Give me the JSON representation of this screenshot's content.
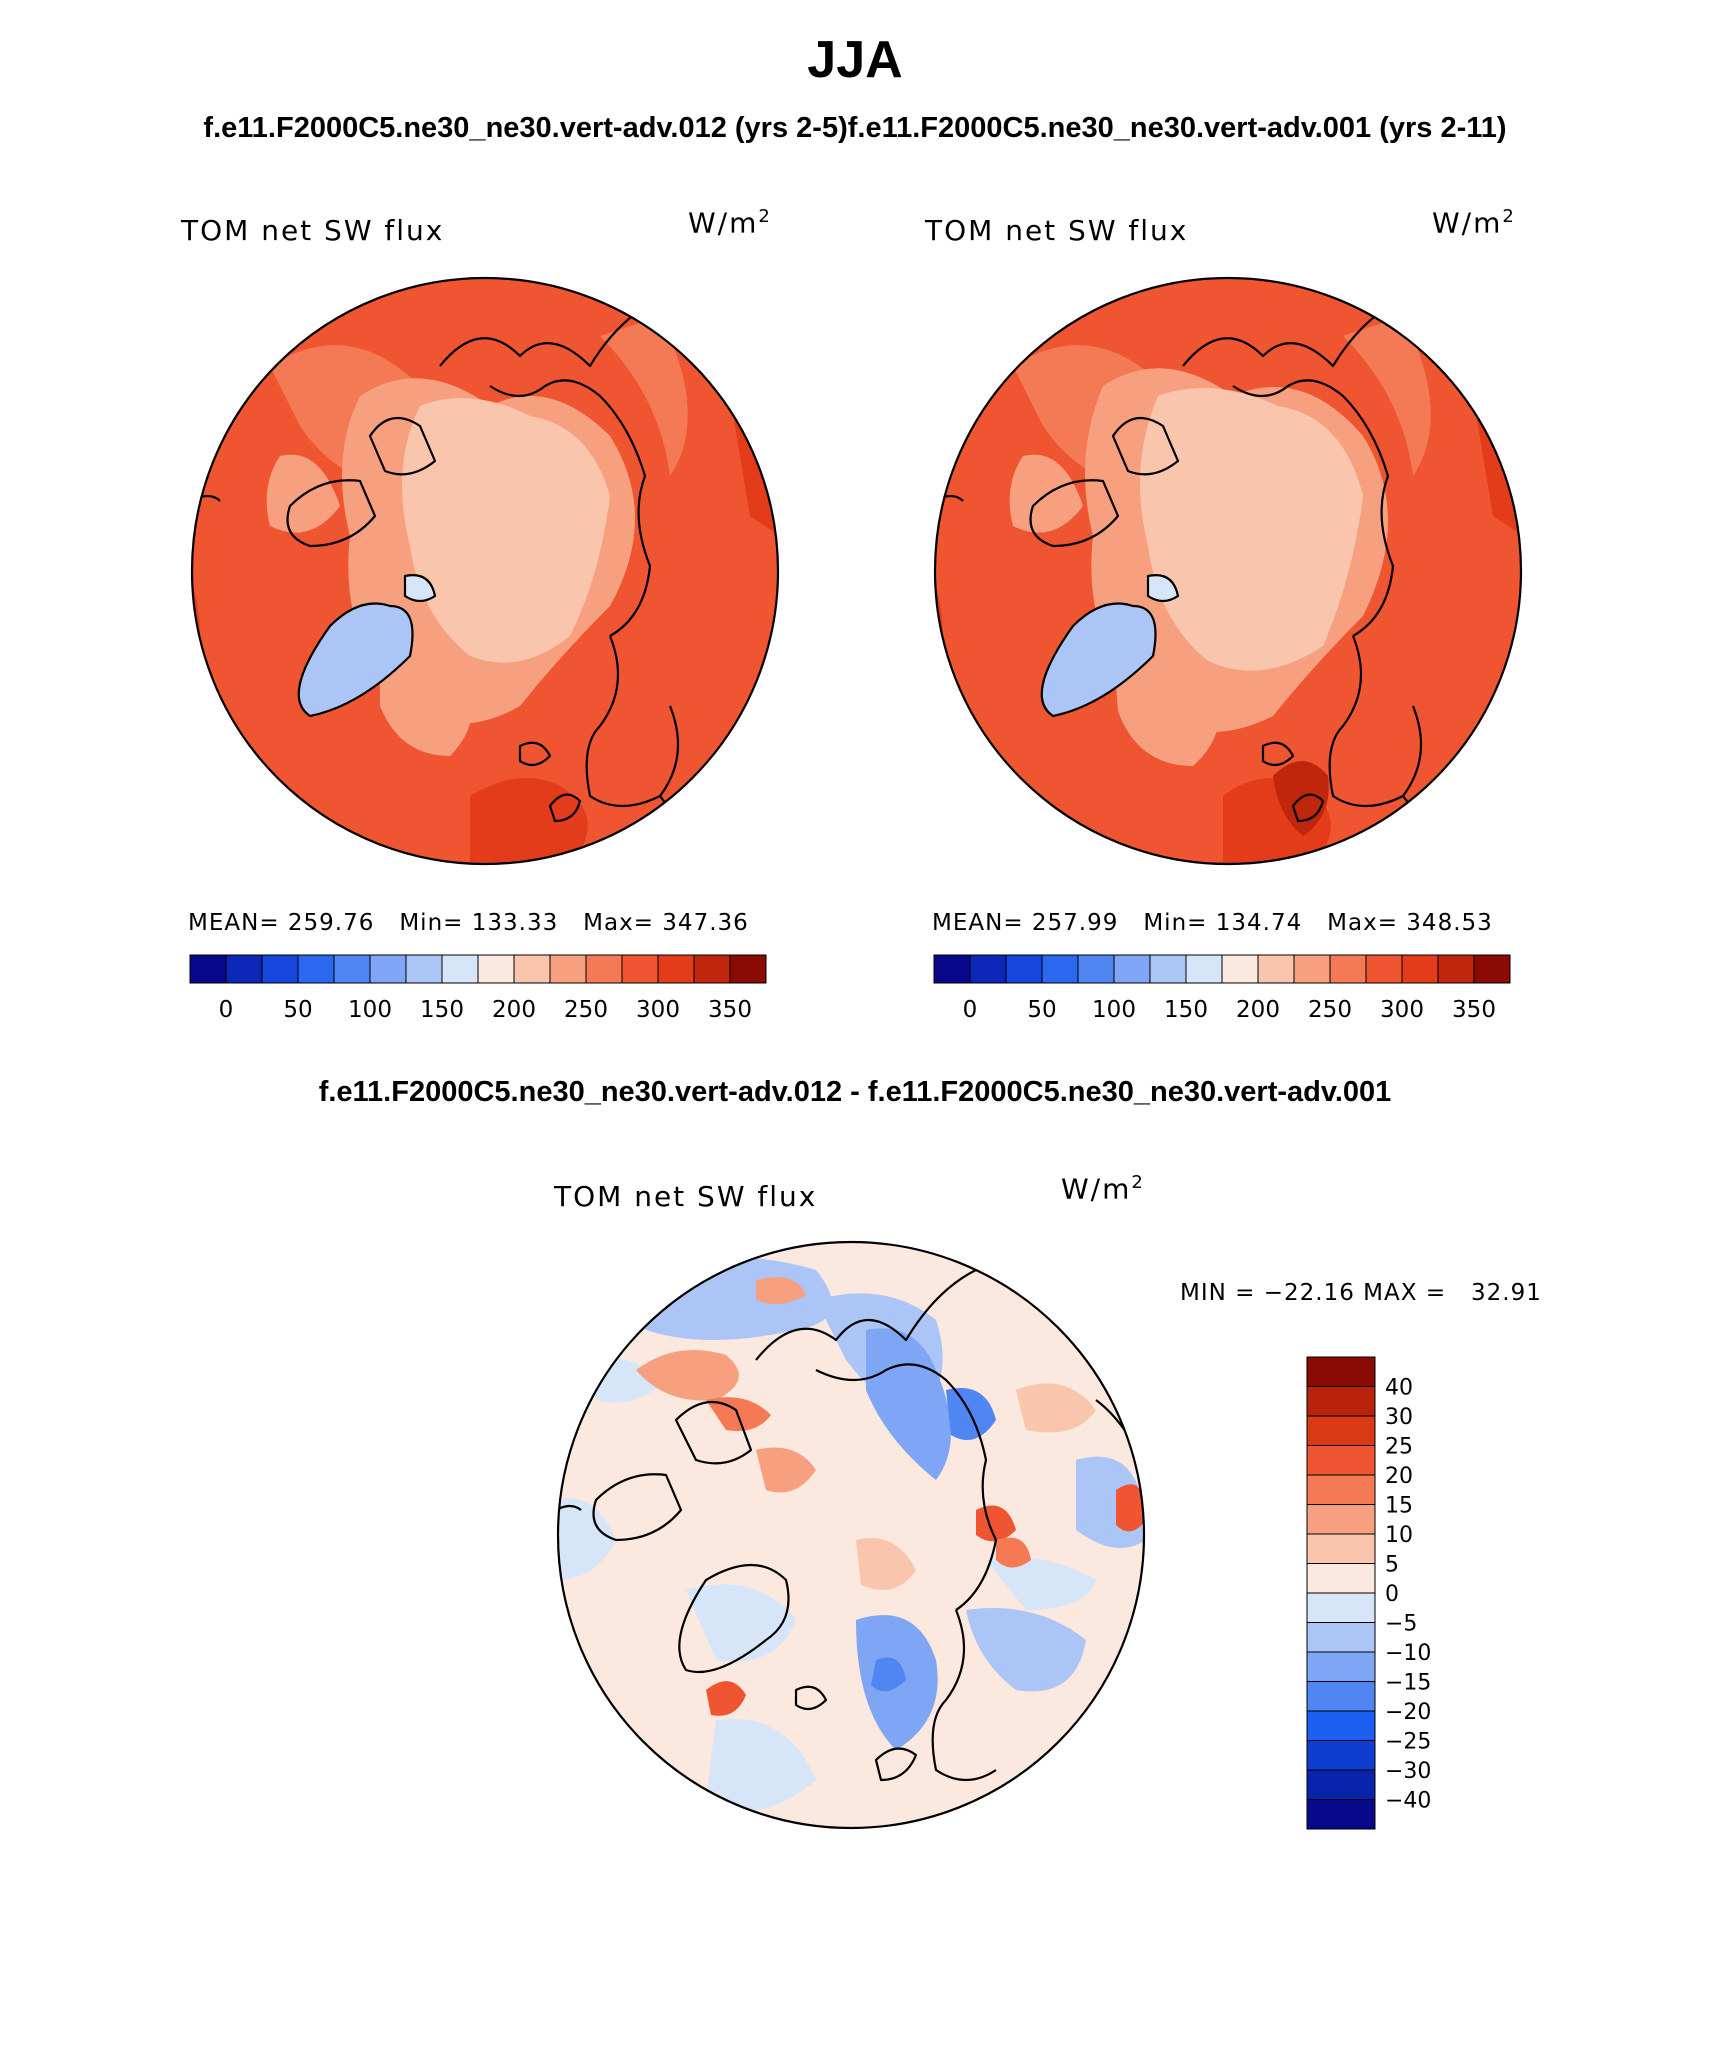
{
  "title": "JJA",
  "case_titles": "f.e11.F2000C5.ne30_ne30.vert-adv.012 (yrs 2-5)f.e11.F2000C5.ne30_ne30.vert-adv.001 (yrs 2-11)",
  "diff_title": "f.e11.F2000C5.ne30_ne30.vert-adv.012 - f.e11.F2000C5.ne30_ne30.vert-adv.001",
  "colors": {
    "abs_scale": [
      "#08088a",
      "#0c26b8",
      "#1646dc",
      "#2a68f0",
      "#4f86f2",
      "#7fa6f4",
      "#abc6f6",
      "#d6e6f8",
      "#fbe8de",
      "#f9c6ad",
      "#f6a07f",
      "#f37a54",
      "#ee5530",
      "#e23c1a",
      "#c0260c",
      "#8a0a04"
    ],
    "diff_scale": [
      "#08088a",
      "#0a23ad",
      "#0e3ed0",
      "#1b5ef0",
      "#4f86f2",
      "#7fa6f4",
      "#abc6f6",
      "#d6e6f8",
      "#fbe8de",
      "#f9c6ad",
      "#f6a07f",
      "#f37a54",
      "#ee5530",
      "#d93a15",
      "#b8230b",
      "#8a0a04"
    ]
  },
  "panels": [
    {
      "label": "TOM net SW flux",
      "units_base": "W/m",
      "units_exp": "2",
      "mean_label": "MEAN=",
      "mean": "259.76",
      "min_label": "Min=",
      "min": "133.33",
      "max_label": "Max=",
      "max": "347.36"
    },
    {
      "label": "TOM net SW flux",
      "units_base": "W/m",
      "units_exp": "2",
      "mean_label": "MEAN=",
      "mean": "257.99",
      "min_label": "Min=",
      "min": "134.74",
      "max_label": "Max=",
      "max": "348.53"
    }
  ],
  "diff_panel": {
    "label": "TOM net SW flux",
    "units_base": "W/m",
    "units_exp": "2",
    "min_label": "MIN =",
    "min": "−22.16",
    "max_label": "MAX =",
    "max": "32.91"
  },
  "chart_data": [
    {
      "type": "heatmap",
      "title": "TOM net SW flux",
      "subtitle": "f.e11.F2000C5.ne30_ne30.vert-adv.012 (yrs 2-5)",
      "units": "W/m2",
      "colorbar_ticks": [
        "0",
        "50",
        "100",
        "150",
        "200",
        "250",
        "300",
        "350"
      ],
      "colorbar_range": [
        -25,
        375
      ],
      "mean": 259.76,
      "min": 133.33,
      "max": 347.36
    },
    {
      "type": "heatmap",
      "title": "TOM net SW flux",
      "subtitle": "f.e11.F2000C5.ne30_ne30.vert-adv.001 (yrs 2-11)",
      "units": "W/m2",
      "colorbar_ticks": [
        "0",
        "50",
        "100",
        "150",
        "200",
        "250",
        "300",
        "350"
      ],
      "colorbar_range": [
        -25,
        375
      ],
      "mean": 257.99,
      "min": 134.74,
      "max": 348.53
    },
    {
      "type": "heatmap",
      "title": "TOM net SW flux",
      "subtitle": "f.e11.F2000C5.ne30_ne30.vert-adv.012 - f.e11.F2000C5.ne30_ne30.vert-adv.001",
      "units": "W/m2",
      "colorbar_levels": [
        "40",
        "30",
        "25",
        "20",
        "15",
        "10",
        "5",
        "0",
        "−5",
        "−10",
        "−15",
        "−20",
        "−25",
        "−30",
        "−40"
      ],
      "min": -22.16,
      "max": 32.91
    }
  ]
}
